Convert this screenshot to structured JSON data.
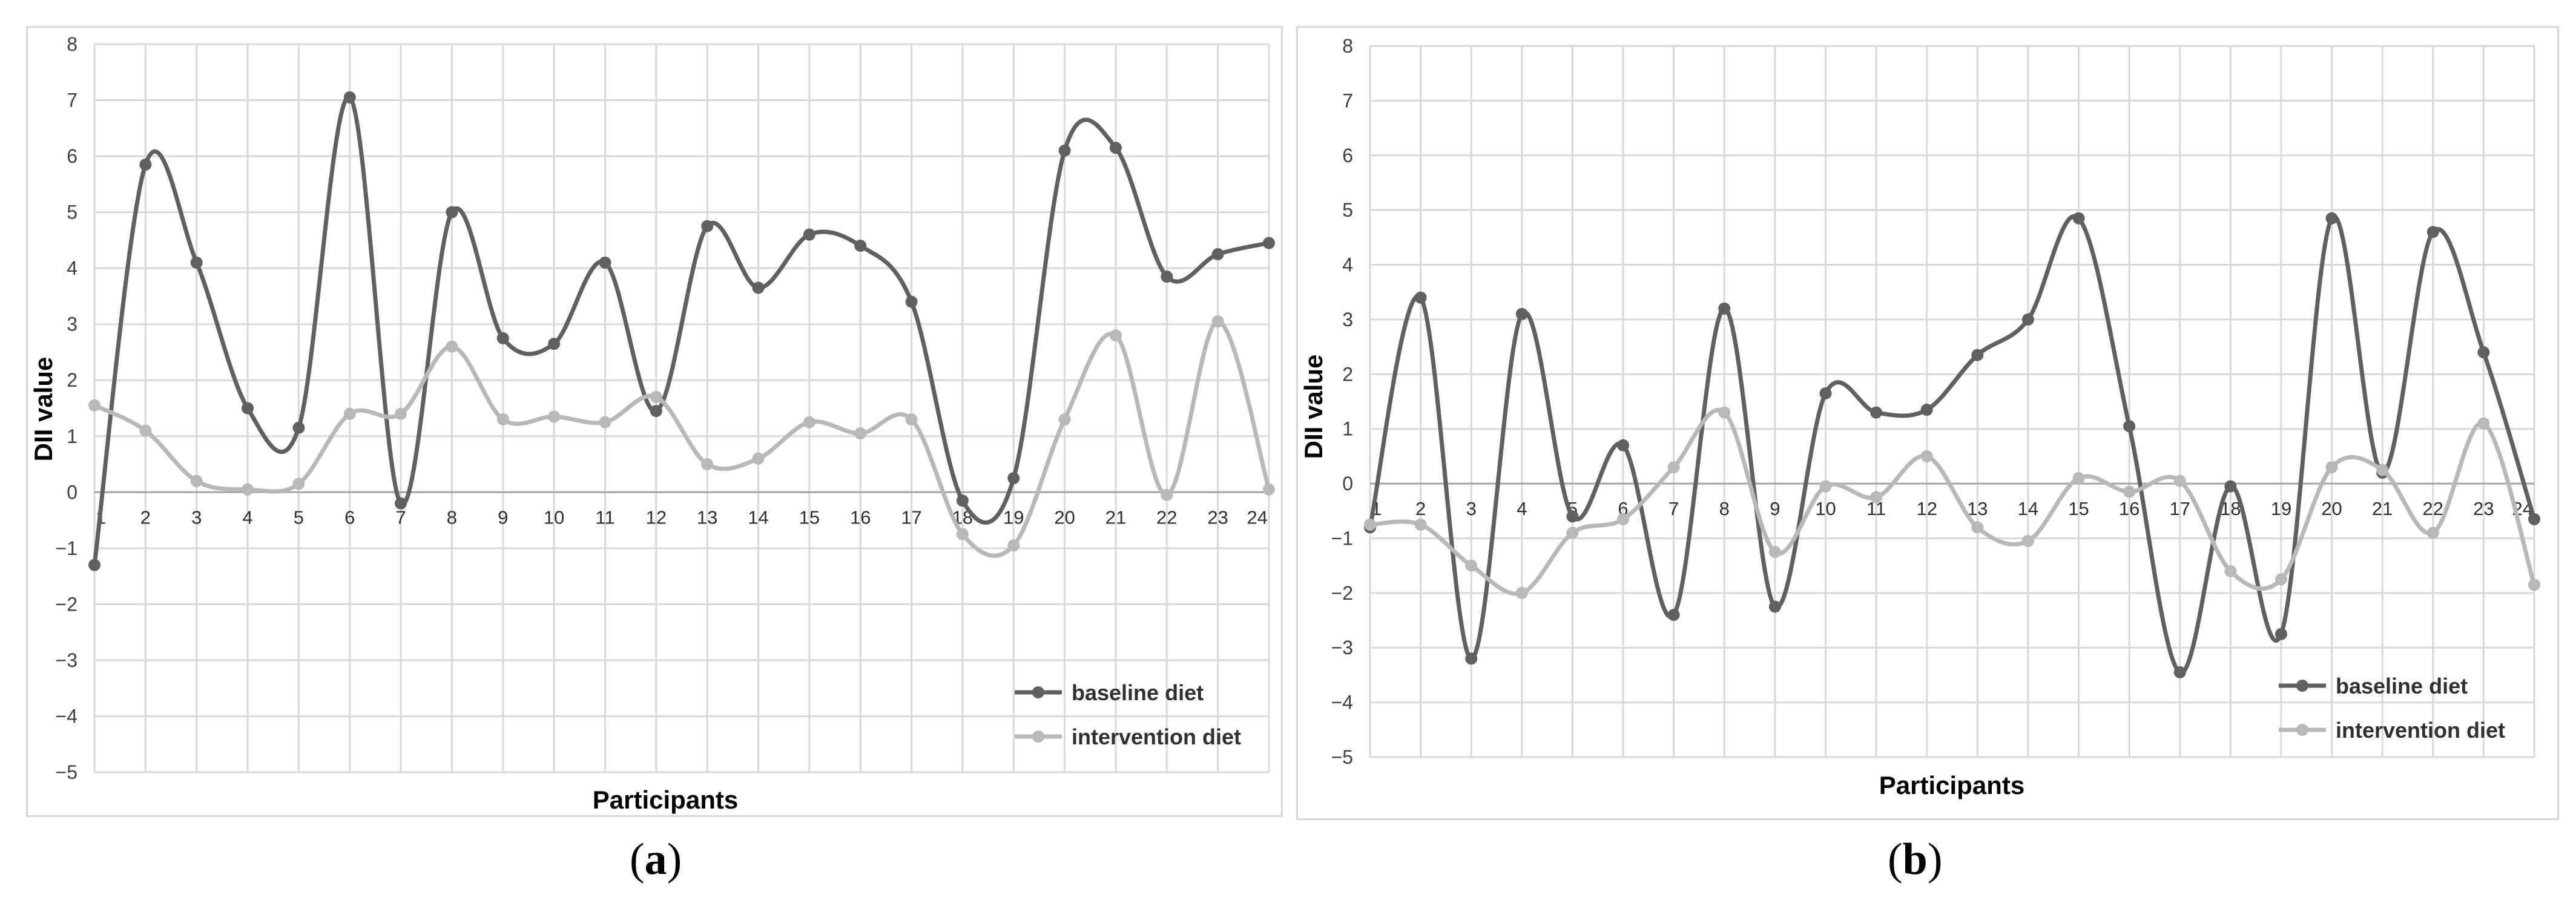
{
  "chart_data": [
    {
      "type": "line",
      "panel": "a",
      "caption": {
        "open": "(",
        "letter": "a",
        "close": ")"
      },
      "xlabel": "Participants",
      "ylabel": "DII value",
      "ylim": [
        -5,
        8
      ],
      "yticks": [
        8,
        7,
        6,
        5,
        4,
        3,
        2,
        1,
        0,
        -1,
        -2,
        -3,
        -4,
        -5
      ],
      "categories": [
        "1",
        "2",
        "3",
        "4",
        "5",
        "6",
        "7",
        "8",
        "9",
        "10",
        "11",
        "12",
        "13",
        "14",
        "15",
        "16",
        "17",
        "18",
        "19",
        "20",
        "21",
        "22",
        "23",
        "24"
      ],
      "grid": true,
      "smooth": true,
      "legend_position": "bottom-right",
      "series": [
        {
          "name": "baseline diet",
          "color": "#606060",
          "values": [
            -1.3,
            5.85,
            4.1,
            1.5,
            1.15,
            7.05,
            -0.2,
            5.0,
            2.75,
            2.65,
            4.1,
            1.45,
            4.75,
            3.65,
            4.6,
            4.4,
            3.4,
            -0.15,
            0.25,
            6.1,
            6.15,
            3.85,
            4.25,
            4.45
          ]
        },
        {
          "name": "intervention diet",
          "color": "#b8b8b8",
          "values": [
            1.55,
            1.1,
            0.2,
            0.05,
            0.15,
            1.4,
            1.4,
            2.6,
            1.3,
            1.35,
            1.25,
            1.7,
            0.5,
            0.6,
            1.25,
            1.05,
            1.3,
            -0.75,
            -0.95,
            1.3,
            2.8,
            -0.05,
            3.05,
            0.05
          ]
        }
      ]
    },
    {
      "type": "line",
      "panel": "b",
      "caption": {
        "open": "(",
        "letter": "b",
        "close": ")"
      },
      "xlabel": "Participants",
      "ylabel": "DII value",
      "ylim": [
        -5,
        8
      ],
      "yticks": [
        8,
        7,
        6,
        5,
        4,
        3,
        2,
        1,
        0,
        -1,
        -2,
        -3,
        -4,
        -5
      ],
      "categories": [
        "1",
        "2",
        "3",
        "4",
        "5",
        "6",
        "7",
        "8",
        "9",
        "10",
        "11",
        "12",
        "13",
        "14",
        "15",
        "16",
        "17",
        "18",
        "19",
        "20",
        "21",
        "22",
        "23",
        "24"
      ],
      "grid": true,
      "smooth": true,
      "legend_position": "bottom-right",
      "series": [
        {
          "name": "baseline diet",
          "color": "#606060",
          "values": [
            -0.8,
            3.4,
            -3.2,
            3.1,
            -0.6,
            0.7,
            -2.4,
            3.2,
            -2.25,
            1.65,
            1.3,
            1.35,
            2.35,
            3.0,
            4.85,
            1.05,
            -3.45,
            -0.05,
            -2.75,
            4.85,
            0.2,
            4.6,
            2.4,
            -0.65
          ]
        },
        {
          "name": "intervention diet",
          "color": "#b8b8b8",
          "values": [
            -0.75,
            -0.75,
            -1.5,
            -2.0,
            -0.9,
            -0.65,
            0.3,
            1.3,
            -1.25,
            -0.05,
            -0.25,
            0.5,
            -0.8,
            -1.05,
            0.1,
            -0.15,
            0.05,
            -1.6,
            -1.75,
            0.3,
            0.25,
            -0.9,
            1.1,
            -1.85
          ]
        }
      ]
    }
  ]
}
